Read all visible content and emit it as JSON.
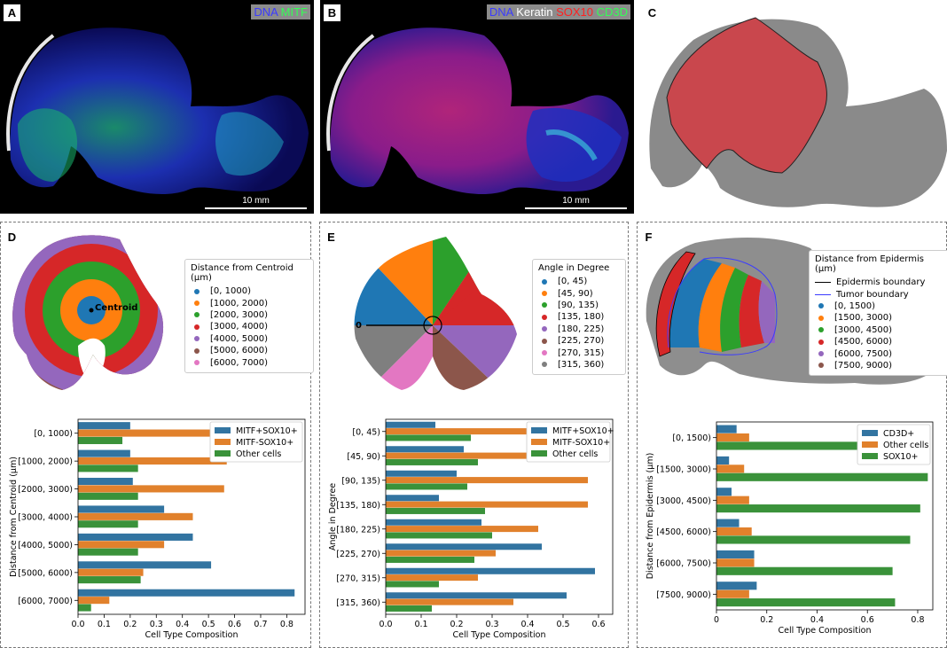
{
  "colors": {
    "tab_blue": "#1f77b4",
    "tab_orange": "#ff7f0e",
    "tab_green": "#2ca02c",
    "tab_red": "#d62728",
    "tab_purple": "#9467bd",
    "tab_brown": "#8c564b",
    "tab_pink": "#e377c2",
    "tab_gray": "#7f7f7f",
    "bar_blue": "#3274a1",
    "bar_orange": "#e1812c",
    "bar_green": "#3a923a",
    "tissue_gray": "#8a8a8a",
    "tumor_red": "#c9474d"
  },
  "panels": {
    "A": {
      "letter": "A",
      "legend": [
        {
          "text": "DNA",
          "color": "#3a3aff"
        },
        {
          "text": " MITF",
          "color": "#33ff55"
        }
      ],
      "scale": "10 mm"
    },
    "B": {
      "letter": "B",
      "legend": [
        {
          "text": "DNA",
          "color": "#3a3aff"
        },
        {
          "text": " Keratin",
          "color": "#ffffff"
        },
        {
          "text": " SOX10",
          "color": "#ff2020"
        },
        {
          "text": " CD3D",
          "color": "#33ff55"
        }
      ],
      "scale": "10 mm"
    },
    "C": {
      "letter": "C"
    },
    "D": {
      "letter": "D",
      "centroid_label": "Centroid",
      "legend_title": "Distance from Centroid (μm)",
      "legend_items": [
        {
          "label": "[0, 1000)",
          "color": "#1f77b4"
        },
        {
          "label": "[1000, 2000)",
          "color": "#ff7f0e"
        },
        {
          "label": "[2000, 3000)",
          "color": "#2ca02c"
        },
        {
          "label": "[3000, 4000)",
          "color": "#d62728"
        },
        {
          "label": "[4000, 5000)",
          "color": "#9467bd"
        },
        {
          "label": "[5000, 6000)",
          "color": "#8c564b"
        },
        {
          "label": "[6000, 7000)",
          "color": "#e377c2"
        }
      ]
    },
    "E": {
      "letter": "E",
      "zero_label": "0",
      "legend_title": "Angle in Degree",
      "legend_items": [
        {
          "label": "[0, 45)",
          "color": "#1f77b4"
        },
        {
          "label": "[45, 90)",
          "color": "#ff7f0e"
        },
        {
          "label": "[90, 135)",
          "color": "#2ca02c"
        },
        {
          "label": "[135, 180)",
          "color": "#d62728"
        },
        {
          "label": "[180, 225)",
          "color": "#9467bd"
        },
        {
          "label": "[225, 270)",
          "color": "#8c564b"
        },
        {
          "label": "[270, 315)",
          "color": "#e377c2"
        },
        {
          "label": "[315, 360)",
          "color": "#7f7f7f"
        }
      ]
    },
    "F": {
      "letter": "F",
      "legend_title": "Distance from Epidermis (μm)",
      "legend_lines": [
        {
          "label": "Epidermis boundary",
          "color": "#000000"
        },
        {
          "label": "Tumor boundary",
          "color": "#3b3bff"
        }
      ],
      "legend_items": [
        {
          "label": "[0, 1500)",
          "color": "#1f77b4"
        },
        {
          "label": "[1500, 3000)",
          "color": "#ff7f0e"
        },
        {
          "label": "[3000, 4500)",
          "color": "#2ca02c"
        },
        {
          "label": "[4500, 6000)",
          "color": "#d62728"
        },
        {
          "label": "[6000, 7500)",
          "color": "#9467bd"
        },
        {
          "label": "[7500, 9000)",
          "color": "#8c564b"
        }
      ]
    }
  },
  "chart_data": [
    {
      "type": "bar",
      "orientation": "horizontal",
      "panel": "D",
      "categories": [
        "[0, 1000)",
        "[1000, 2000)",
        "[2000, 3000)",
        "[3000, 4000)",
        "[4000, 5000)",
        "[5000, 6000)",
        "[6000, 7000)"
      ],
      "series": [
        {
          "name": "MITF+SOX10+",
          "color": "#3274a1",
          "values": [
            0.2,
            0.2,
            0.21,
            0.33,
            0.44,
            0.51,
            0.83
          ]
        },
        {
          "name": "MITF-SOX10+",
          "color": "#e1812c",
          "values": [
            0.59,
            0.57,
            0.56,
            0.44,
            0.33,
            0.25,
            0.12
          ]
        },
        {
          "name": "Other cells",
          "color": "#3a923a",
          "values": [
            0.17,
            0.23,
            0.23,
            0.23,
            0.23,
            0.24,
            0.05
          ]
        }
      ],
      "xlabel": "Cell Type Composition",
      "ylabel": "Distance from Centroid (μm)",
      "xlim": [
        0,
        0.87
      ],
      "xticks": [
        0.0,
        0.1,
        0.2,
        0.3,
        0.4,
        0.5,
        0.6,
        0.7,
        0.8
      ],
      "xtick_labels": [
        "0.0",
        "0.1",
        "0.2",
        "0.3",
        "0.4",
        "0.5",
        "0.6",
        "0.7",
        "0.8"
      ],
      "legend": "top-right",
      "grid": false
    },
    {
      "type": "bar",
      "orientation": "horizontal",
      "panel": "E",
      "categories": [
        "[0, 45)",
        "[45, 90)",
        "[90, 135)",
        "[135, 180)",
        "[180, 225)",
        "[225, 270)",
        "[270, 315)",
        "[315, 360)"
      ],
      "series": [
        {
          "name": "MITF+SOX10+",
          "color": "#3274a1",
          "values": [
            0.14,
            0.22,
            0.2,
            0.15,
            0.27,
            0.44,
            0.59,
            0.51
          ]
        },
        {
          "name": "MITF-SOX10+",
          "color": "#e1812c",
          "values": [
            0.62,
            0.51,
            0.57,
            0.57,
            0.43,
            0.31,
            0.26,
            0.36
          ]
        },
        {
          "name": "Other cells",
          "color": "#3a923a",
          "values": [
            0.24,
            0.26,
            0.23,
            0.28,
            0.3,
            0.25,
            0.15,
            0.13
          ]
        }
      ],
      "xlabel": "Cell Type Composition",
      "ylabel": "Angle in Degree",
      "xlim": [
        0,
        0.64
      ],
      "xticks": [
        0.0,
        0.1,
        0.2,
        0.3,
        0.4,
        0.5,
        0.6
      ],
      "xtick_labels": [
        "0.0",
        "0.1",
        "0.2",
        "0.3",
        "0.4",
        "0.5",
        "0.6"
      ],
      "legend": "top-right",
      "grid": false
    },
    {
      "type": "bar",
      "orientation": "horizontal",
      "panel": "F",
      "categories": [
        "[0, 1500)",
        "[1500, 3000)",
        "[3000, 4500)",
        "[4500, 6000)",
        "[6000, 7500)",
        "[7500, 9000)"
      ],
      "series": [
        {
          "name": "CD3D+",
          "color": "#3274a1",
          "values": [
            0.08,
            0.05,
            0.06,
            0.09,
            0.15,
            0.16
          ]
        },
        {
          "name": "Other cells",
          "color": "#e1812c",
          "values": [
            0.13,
            0.11,
            0.13,
            0.14,
            0.15,
            0.13
          ]
        },
        {
          "name": "SOX10+",
          "color": "#3a923a",
          "values": [
            0.79,
            0.84,
            0.81,
            0.77,
            0.7,
            0.71
          ]
        }
      ],
      "xlabel": "Cell Type Composition",
      "ylabel": "Distance from Epidermis (μm)",
      "xlim": [
        0,
        0.86
      ],
      "xticks": [
        0.0,
        0.2,
        0.4,
        0.6,
        0.8
      ],
      "xtick_labels": [
        "0",
        "0.2",
        "0.4",
        "0.6",
        "0.8"
      ],
      "legend": "top-right",
      "grid": false
    }
  ]
}
